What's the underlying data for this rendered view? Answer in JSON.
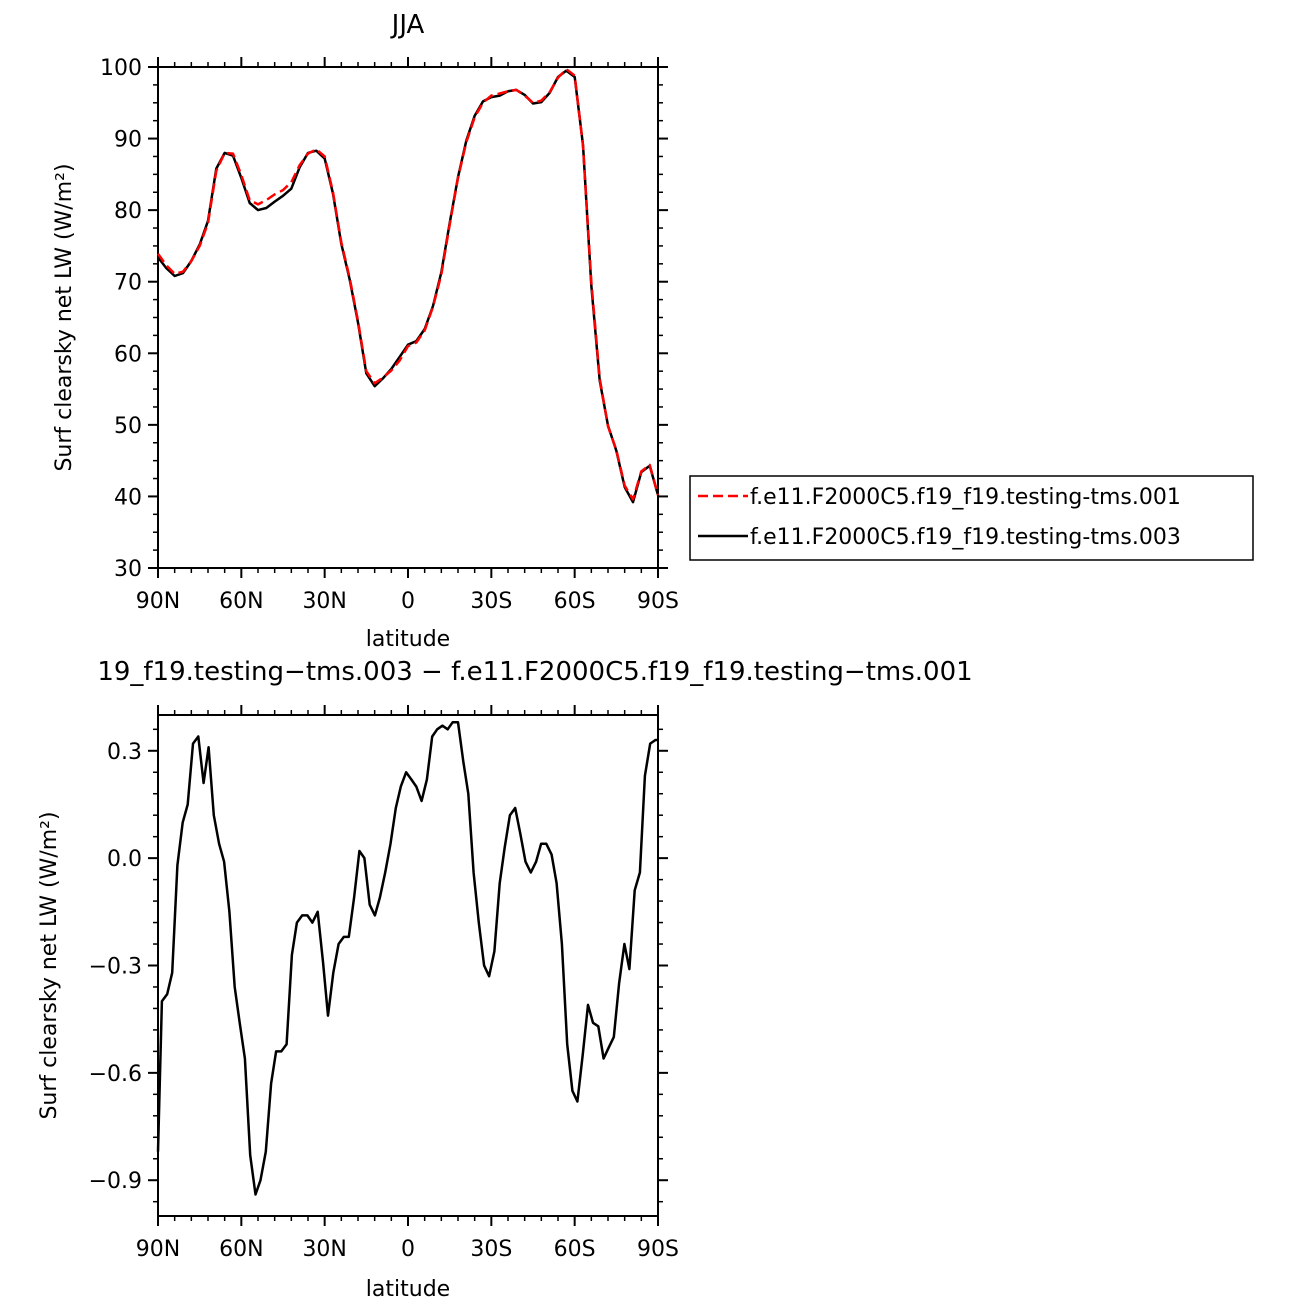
{
  "chart_data": [
    {
      "type": "line",
      "title": "JJA",
      "xlabel": "latitude",
      "ylabel": "Surf clearsky net LW (W/m²)",
      "xlim": [
        -90,
        90
      ],
      "ylim": [
        30,
        100
      ],
      "xticks": [
        {
          "value": -90,
          "label": "90N"
        },
        {
          "value": -60,
          "label": "60N"
        },
        {
          "value": -30,
          "label": "30N"
        },
        {
          "value": 0,
          "label": "0"
        },
        {
          "value": 30,
          "label": "30S"
        },
        {
          "value": 60,
          "label": "60S"
        },
        {
          "value": 90,
          "label": "90S"
        }
      ],
      "yticks": [
        30,
        40,
        50,
        60,
        70,
        80,
        90,
        100
      ],
      "legend": {
        "position": "right"
      },
      "series": [
        {
          "name": "f.e11.F2000C5.f19_f19.testing-tms.001",
          "color": "#ff0000",
          "dash": "dashed",
          "x": [
            -90,
            -87,
            -84,
            -81,
            -78,
            -75,
            -72,
            -69,
            -66,
            -63,
            -60,
            -57,
            -54,
            -51,
            -48,
            -45,
            -42,
            -39,
            -36,
            -33,
            -30,
            -27,
            -24,
            -21,
            -18,
            -15,
            -12,
            -9,
            -6,
            -3,
            0,
            3,
            6,
            9,
            12,
            15,
            18,
            21,
            24,
            27,
            30,
            33,
            36,
            39,
            42,
            45,
            48,
            51,
            54,
            57,
            60,
            63,
            66,
            69,
            72,
            75,
            78,
            81,
            84,
            87,
            90
          ],
          "y": [
            73.9,
            72.3,
            71.1,
            71.4,
            72.9,
            75.0,
            78.2,
            85.5,
            88.0,
            87.9,
            84.9,
            81.4,
            80.8,
            81.4,
            82.2,
            82.8,
            83.9,
            86.3,
            87.9,
            88.5,
            87.5,
            82.5,
            75.5,
            70.5,
            64.5,
            57.5,
            55.8,
            56.6,
            57.6,
            59.0,
            61.0,
            61.5,
            63.2,
            66.5,
            71.0,
            78.0,
            84.5,
            89.5,
            93.0,
            95.0,
            96.0,
            96.3,
            96.6,
            96.8,
            96.0,
            95.0,
            95.3,
            96.5,
            98.5,
            99.7,
            98.8,
            89.0,
            70.0,
            56.5,
            49.8,
            46.5,
            41.5,
            39.6,
            43.5,
            44.4,
            40.2
          ]
        },
        {
          "name": "f.e11.F2000C5.f19_f19.testing-tms.003",
          "color": "#000000",
          "dash": "solid",
          "x": [
            -90,
            -87,
            -84,
            -81,
            -78,
            -75,
            -72,
            -69,
            -66,
            -63,
            -60,
            -57,
            -54,
            -51,
            -48,
            -45,
            -42,
            -39,
            -36,
            -33,
            -30,
            -27,
            -24,
            -21,
            -18,
            -15,
            -12,
            -9,
            -6,
            -3,
            0,
            3,
            6,
            9,
            12,
            15,
            18,
            21,
            24,
            27,
            30,
            33,
            36,
            39,
            42,
            45,
            48,
            51,
            54,
            57,
            60,
            63,
            66,
            69,
            72,
            75,
            78,
            81,
            84,
            87,
            90
          ],
          "y": [
            73.4,
            71.9,
            70.8,
            71.2,
            72.9,
            75.2,
            78.5,
            85.8,
            88.0,
            87.6,
            84.5,
            81.0,
            80.0,
            80.3,
            81.2,
            82.0,
            83.0,
            86.0,
            88.0,
            88.3,
            87.2,
            82.3,
            75.3,
            70.3,
            64.3,
            57.2,
            55.4,
            56.5,
            57.8,
            59.5,
            61.2,
            61.7,
            63.4,
            66.6,
            71.3,
            78.2,
            84.6,
            89.7,
            93.2,
            95.2,
            95.8,
            96.0,
            96.6,
            96.8,
            96.1,
            94.9,
            95.1,
            96.4,
            98.6,
            99.5,
            98.6,
            89.1,
            69.5,
            56.2,
            49.9,
            46.4,
            41.3,
            39.2,
            43.4,
            44.3,
            40.2
          ]
        }
      ]
    },
    {
      "type": "line",
      "title": "19_f19.testing−tms.003 − f.e11.F2000C5.f19_f19.testing−tms.001",
      "xlabel": "latitude",
      "ylabel": "Surf clearsky net LW (W/m²)",
      "xlim": [
        -90,
        90
      ],
      "ylim": [
        -1.0,
        0.4
      ],
      "xticks": [
        {
          "value": -90,
          "label": "90N"
        },
        {
          "value": -60,
          "label": "60N"
        },
        {
          "value": -30,
          "label": "30N"
        },
        {
          "value": 0,
          "label": "0"
        },
        {
          "value": 30,
          "label": "30S"
        },
        {
          "value": 60,
          "label": "60S"
        },
        {
          "value": 90,
          "label": "90S"
        }
      ],
      "yticks": [
        {
          "value": 0.3,
          "label": "0.3"
        },
        {
          "value": 0.0,
          "label": "0.0"
        },
        {
          "value": -0.3,
          "label": "−0.3"
        },
        {
          "value": -0.6,
          "label": "−0.6"
        },
        {
          "value": -0.9,
          "label": "−0.9"
        }
      ],
      "series": [
        {
          "color": "#000000",
          "x": [
            -90,
            -88.6,
            -86.7,
            -84.9,
            -83.0,
            -81.1,
            -79.3,
            -77.4,
            -75.5,
            -73.6,
            -71.8,
            -69.9,
            -68.0,
            -66.2,
            -64.3,
            -62.4,
            -60.6,
            -58.7,
            -56.8,
            -54.9,
            -53.1,
            -51.2,
            -49.3,
            -47.5,
            -45.6,
            -43.7,
            -41.8,
            -40.0,
            -38.1,
            -36.2,
            -34.4,
            -32.5,
            -30.6,
            -28.8,
            -26.9,
            -25.0,
            -23.1,
            -21.3,
            -19.4,
            -17.5,
            -15.7,
            -13.8,
            -11.9,
            -10.1,
            -8.2,
            -6.3,
            -4.4,
            -2.6,
            -0.7,
            1.2,
            3.0,
            4.9,
            6.8,
            8.7,
            10.5,
            12.4,
            14.3,
            16.1,
            18.0,
            19.9,
            21.7,
            23.6,
            25.5,
            27.4,
            29.2,
            31.1,
            33.0,
            34.8,
            36.7,
            38.6,
            40.4,
            42.3,
            44.2,
            46.1,
            47.9,
            49.8,
            51.7,
            53.5,
            55.4,
            57.3,
            59.2,
            61.0,
            62.9,
            64.8,
            66.6,
            68.5,
            70.4,
            72.2,
            74.1,
            76.0,
            77.9,
            79.7,
            81.6,
            83.5,
            85.3,
            87.2,
            89.1,
            90
          ],
          "y": [
            -0.82,
            -0.4,
            -0.38,
            -0.32,
            -0.02,
            0.1,
            0.15,
            0.32,
            0.34,
            0.21,
            0.31,
            0.12,
            0.04,
            -0.01,
            -0.15,
            -0.36,
            -0.46,
            -0.56,
            -0.83,
            -0.94,
            -0.9,
            -0.82,
            -0.63,
            -0.54,
            -0.54,
            -0.52,
            -0.27,
            -0.18,
            -0.16,
            -0.16,
            -0.18,
            -0.15,
            -0.29,
            -0.44,
            -0.32,
            -0.24,
            -0.22,
            -0.22,
            -0.11,
            0.02,
            0.0,
            -0.13,
            -0.16,
            -0.11,
            -0.04,
            0.04,
            0.14,
            0.2,
            0.24,
            0.22,
            0.2,
            0.16,
            0.22,
            0.34,
            0.36,
            0.37,
            0.36,
            0.38,
            0.38,
            0.27,
            0.18,
            -0.04,
            -0.18,
            -0.3,
            -0.33,
            -0.26,
            -0.07,
            0.03,
            0.12,
            0.14,
            0.07,
            -0.01,
            -0.04,
            -0.01,
            0.04,
            0.04,
            0.01,
            -0.07,
            -0.24,
            -0.52,
            -0.65,
            -0.68,
            -0.55,
            -0.41,
            -0.46,
            -0.47,
            -0.56,
            -0.53,
            -0.5,
            -0.35,
            -0.24,
            -0.31,
            -0.09,
            -0.04,
            0.23,
            0.32,
            0.33,
            0.33
          ]
        }
      ]
    }
  ]
}
